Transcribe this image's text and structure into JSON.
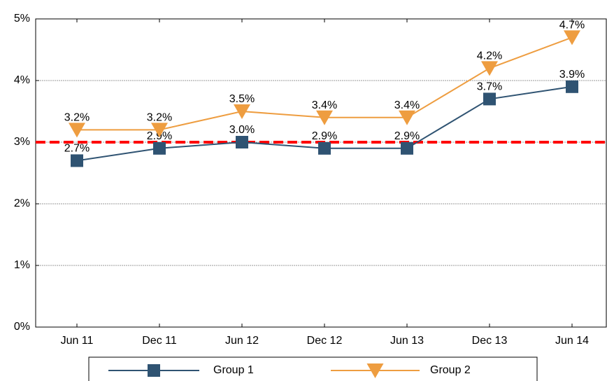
{
  "chart_data": {
    "type": "line",
    "categories": [
      "Jun 11",
      "Dec 11",
      "Jun 12",
      "Dec 12",
      "Jun 13",
      "Dec 13",
      "Jun 14"
    ],
    "series": [
      {
        "name": "Group 1",
        "color": "#2f5372",
        "marker": "square",
        "values": [
          2.7,
          2.9,
          3.0,
          2.9,
          2.9,
          3.7,
          3.9
        ],
        "value_labels": [
          "2.7%",
          "2.9%",
          "3.0%",
          "2.9%",
          "2.9%",
          "3.7%",
          "3.9%"
        ]
      },
      {
        "name": "Group 2",
        "color": "#ee9d40",
        "marker": "triangle-down",
        "values": [
          3.2,
          3.2,
          3.5,
          3.4,
          3.4,
          4.2,
          4.7
        ],
        "value_labels": [
          "3.2%",
          "3.2%",
          "3.5%",
          "3.4%",
          "3.4%",
          "4.2%",
          "4.7%"
        ]
      }
    ],
    "reference_line": {
      "value": 3,
      "color": "#ff0000"
    },
    "ylim": [
      0,
      5
    ],
    "yticks": [
      {
        "value": 0,
        "label": "0%"
      },
      {
        "value": 1,
        "label": "1%"
      },
      {
        "value": 2,
        "label": "2%"
      },
      {
        "value": 3,
        "label": "3%"
      },
      {
        "value": 4,
        "label": "4%"
      },
      {
        "value": 5,
        "label": "5%"
      }
    ],
    "grid": true,
    "legend": "bottom"
  }
}
